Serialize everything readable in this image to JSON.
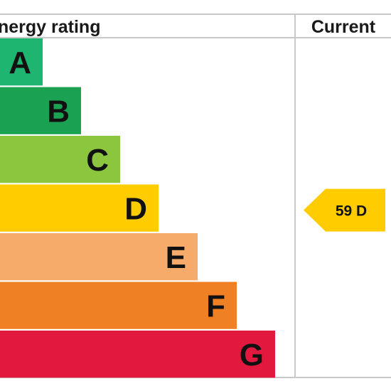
{
  "header": {
    "rating_label": "nergy rating",
    "current_label": "Current"
  },
  "chart_data": {
    "type": "bar",
    "title": "",
    "categories": [
      "A",
      "B",
      "C",
      "D",
      "E",
      "F",
      "G"
    ],
    "colors": [
      "#1db56f",
      "#1aa152",
      "#8cc63f",
      "#ffcc00",
      "#f6ab6b",
      "#ef8024",
      "#e2183f"
    ],
    "current": {
      "label": "59 D",
      "value": 59,
      "band": "D",
      "color": "#ffcc00"
    }
  }
}
